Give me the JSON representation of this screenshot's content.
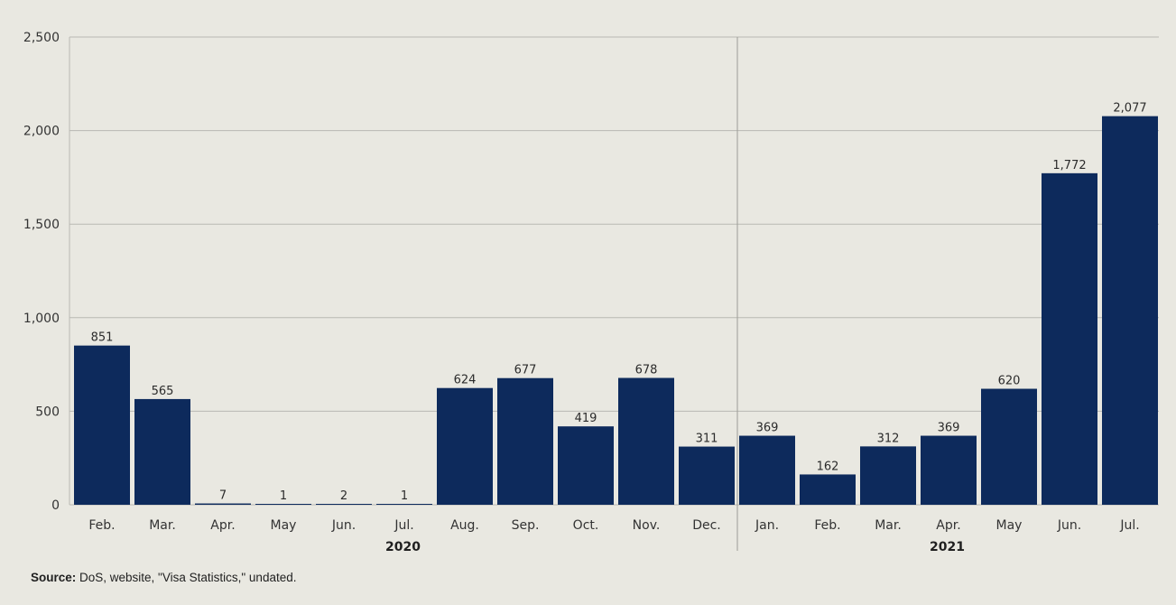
{
  "chart_data": {
    "type": "bar",
    "title": "",
    "xlabel": "",
    "ylabel": "",
    "ylim": [
      0,
      2500
    ],
    "yticks": [
      0,
      500,
      1000,
      1500,
      2000,
      2500
    ],
    "ytick_labels": [
      "0",
      "500",
      "1,000",
      "1,500",
      "2,000",
      "2,500"
    ],
    "grid": "horizontal",
    "legend": "none",
    "bar_color": "#0d2a5c",
    "categories": [
      "Feb.",
      "Mar.",
      "Apr.",
      "May",
      "Jun.",
      "Jul.",
      "Aug.",
      "Sep.",
      "Oct.",
      "Nov.",
      "Dec.",
      "Jan.",
      "Feb.",
      "Mar.",
      "Apr.",
      "May",
      "Jun.",
      "Jul."
    ],
    "values": [
      851,
      565,
      7,
      1,
      2,
      1,
      624,
      677,
      419,
      678,
      311,
      369,
      162,
      312,
      369,
      620,
      1772,
      2077
    ],
    "data_labels": [
      "851",
      "565",
      "7",
      "1",
      "2",
      "1",
      "624",
      "677",
      "419",
      "678",
      "311",
      "369",
      "162",
      "312",
      "369",
      "620",
      "1,772",
      "2,077"
    ],
    "groups": [
      {
        "label": "2020",
        "count": 11
      },
      {
        "label": "2021",
        "count": 7
      }
    ]
  },
  "source": {
    "label": "Source:",
    "text": " DoS, website, \"Visa Statistics,\" undated."
  }
}
